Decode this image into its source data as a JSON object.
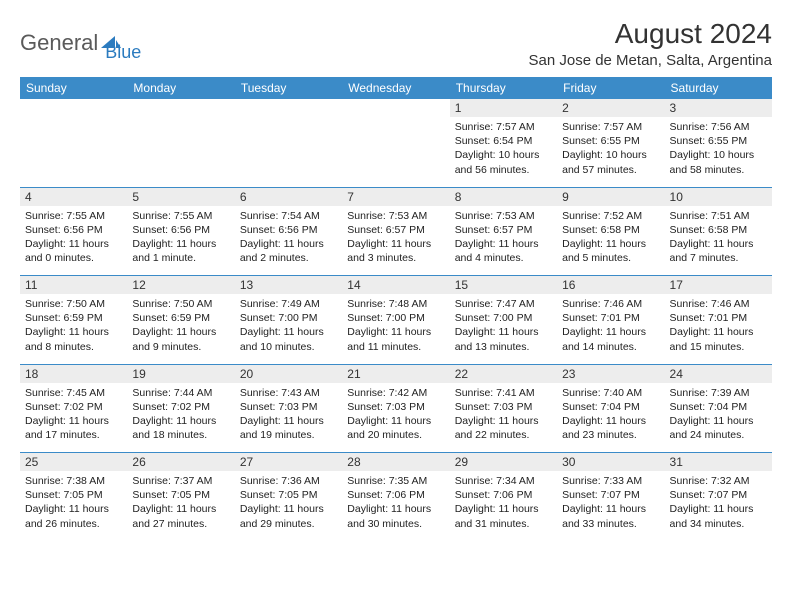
{
  "branding": {
    "logo_text_1": "General",
    "logo_text_2": "Blue",
    "logo_color_gray": "#5a5a5a",
    "logo_color_blue": "#2b7bbf"
  },
  "header": {
    "month_title": "August 2024",
    "location": "San Jose de Metan, Salta, Argentina"
  },
  "colors": {
    "header_bg": "#3b8bc8",
    "header_text": "#ffffff",
    "daynum_bg": "#ededed",
    "border": "#3b8bc8",
    "background": "#ffffff",
    "text": "#000000"
  },
  "day_headers": [
    "Sunday",
    "Monday",
    "Tuesday",
    "Wednesday",
    "Thursday",
    "Friday",
    "Saturday"
  ],
  "weeks": [
    {
      "days": [
        {
          "num": "",
          "empty": true
        },
        {
          "num": "",
          "empty": true
        },
        {
          "num": "",
          "empty": true
        },
        {
          "num": "",
          "empty": true
        },
        {
          "num": "1",
          "sunrise": "Sunrise: 7:57 AM",
          "sunset": "Sunset: 6:54 PM",
          "daylight1": "Daylight: 10 hours",
          "daylight2": "and 56 minutes."
        },
        {
          "num": "2",
          "sunrise": "Sunrise: 7:57 AM",
          "sunset": "Sunset: 6:55 PM",
          "daylight1": "Daylight: 10 hours",
          "daylight2": "and 57 minutes."
        },
        {
          "num": "3",
          "sunrise": "Sunrise: 7:56 AM",
          "sunset": "Sunset: 6:55 PM",
          "daylight1": "Daylight: 10 hours",
          "daylight2": "and 58 minutes."
        }
      ]
    },
    {
      "days": [
        {
          "num": "4",
          "sunrise": "Sunrise: 7:55 AM",
          "sunset": "Sunset: 6:56 PM",
          "daylight1": "Daylight: 11 hours",
          "daylight2": "and 0 minutes."
        },
        {
          "num": "5",
          "sunrise": "Sunrise: 7:55 AM",
          "sunset": "Sunset: 6:56 PM",
          "daylight1": "Daylight: 11 hours",
          "daylight2": "and 1 minute."
        },
        {
          "num": "6",
          "sunrise": "Sunrise: 7:54 AM",
          "sunset": "Sunset: 6:56 PM",
          "daylight1": "Daylight: 11 hours",
          "daylight2": "and 2 minutes."
        },
        {
          "num": "7",
          "sunrise": "Sunrise: 7:53 AM",
          "sunset": "Sunset: 6:57 PM",
          "daylight1": "Daylight: 11 hours",
          "daylight2": "and 3 minutes."
        },
        {
          "num": "8",
          "sunrise": "Sunrise: 7:53 AM",
          "sunset": "Sunset: 6:57 PM",
          "daylight1": "Daylight: 11 hours",
          "daylight2": "and 4 minutes."
        },
        {
          "num": "9",
          "sunrise": "Sunrise: 7:52 AM",
          "sunset": "Sunset: 6:58 PM",
          "daylight1": "Daylight: 11 hours",
          "daylight2": "and 5 minutes."
        },
        {
          "num": "10",
          "sunrise": "Sunrise: 7:51 AM",
          "sunset": "Sunset: 6:58 PM",
          "daylight1": "Daylight: 11 hours",
          "daylight2": "and 7 minutes."
        }
      ]
    },
    {
      "days": [
        {
          "num": "11",
          "sunrise": "Sunrise: 7:50 AM",
          "sunset": "Sunset: 6:59 PM",
          "daylight1": "Daylight: 11 hours",
          "daylight2": "and 8 minutes."
        },
        {
          "num": "12",
          "sunrise": "Sunrise: 7:50 AM",
          "sunset": "Sunset: 6:59 PM",
          "daylight1": "Daylight: 11 hours",
          "daylight2": "and 9 minutes."
        },
        {
          "num": "13",
          "sunrise": "Sunrise: 7:49 AM",
          "sunset": "Sunset: 7:00 PM",
          "daylight1": "Daylight: 11 hours",
          "daylight2": "and 10 minutes."
        },
        {
          "num": "14",
          "sunrise": "Sunrise: 7:48 AM",
          "sunset": "Sunset: 7:00 PM",
          "daylight1": "Daylight: 11 hours",
          "daylight2": "and 11 minutes."
        },
        {
          "num": "15",
          "sunrise": "Sunrise: 7:47 AM",
          "sunset": "Sunset: 7:00 PM",
          "daylight1": "Daylight: 11 hours",
          "daylight2": "and 13 minutes."
        },
        {
          "num": "16",
          "sunrise": "Sunrise: 7:46 AM",
          "sunset": "Sunset: 7:01 PM",
          "daylight1": "Daylight: 11 hours",
          "daylight2": "and 14 minutes."
        },
        {
          "num": "17",
          "sunrise": "Sunrise: 7:46 AM",
          "sunset": "Sunset: 7:01 PM",
          "daylight1": "Daylight: 11 hours",
          "daylight2": "and 15 minutes."
        }
      ]
    },
    {
      "days": [
        {
          "num": "18",
          "sunrise": "Sunrise: 7:45 AM",
          "sunset": "Sunset: 7:02 PM",
          "daylight1": "Daylight: 11 hours",
          "daylight2": "and 17 minutes."
        },
        {
          "num": "19",
          "sunrise": "Sunrise: 7:44 AM",
          "sunset": "Sunset: 7:02 PM",
          "daylight1": "Daylight: 11 hours",
          "daylight2": "and 18 minutes."
        },
        {
          "num": "20",
          "sunrise": "Sunrise: 7:43 AM",
          "sunset": "Sunset: 7:03 PM",
          "daylight1": "Daylight: 11 hours",
          "daylight2": "and 19 minutes."
        },
        {
          "num": "21",
          "sunrise": "Sunrise: 7:42 AM",
          "sunset": "Sunset: 7:03 PM",
          "daylight1": "Daylight: 11 hours",
          "daylight2": "and 20 minutes."
        },
        {
          "num": "22",
          "sunrise": "Sunrise: 7:41 AM",
          "sunset": "Sunset: 7:03 PM",
          "daylight1": "Daylight: 11 hours",
          "daylight2": "and 22 minutes."
        },
        {
          "num": "23",
          "sunrise": "Sunrise: 7:40 AM",
          "sunset": "Sunset: 7:04 PM",
          "daylight1": "Daylight: 11 hours",
          "daylight2": "and 23 minutes."
        },
        {
          "num": "24",
          "sunrise": "Sunrise: 7:39 AM",
          "sunset": "Sunset: 7:04 PM",
          "daylight1": "Daylight: 11 hours",
          "daylight2": "and 24 minutes."
        }
      ]
    },
    {
      "days": [
        {
          "num": "25",
          "sunrise": "Sunrise: 7:38 AM",
          "sunset": "Sunset: 7:05 PM",
          "daylight1": "Daylight: 11 hours",
          "daylight2": "and 26 minutes."
        },
        {
          "num": "26",
          "sunrise": "Sunrise: 7:37 AM",
          "sunset": "Sunset: 7:05 PM",
          "daylight1": "Daylight: 11 hours",
          "daylight2": "and 27 minutes."
        },
        {
          "num": "27",
          "sunrise": "Sunrise: 7:36 AM",
          "sunset": "Sunset: 7:05 PM",
          "daylight1": "Daylight: 11 hours",
          "daylight2": "and 29 minutes."
        },
        {
          "num": "28",
          "sunrise": "Sunrise: 7:35 AM",
          "sunset": "Sunset: 7:06 PM",
          "daylight1": "Daylight: 11 hours",
          "daylight2": "and 30 minutes."
        },
        {
          "num": "29",
          "sunrise": "Sunrise: 7:34 AM",
          "sunset": "Sunset: 7:06 PM",
          "daylight1": "Daylight: 11 hours",
          "daylight2": "and 31 minutes."
        },
        {
          "num": "30",
          "sunrise": "Sunrise: 7:33 AM",
          "sunset": "Sunset: 7:07 PM",
          "daylight1": "Daylight: 11 hours",
          "daylight2": "and 33 minutes."
        },
        {
          "num": "31",
          "sunrise": "Sunrise: 7:32 AM",
          "sunset": "Sunset: 7:07 PM",
          "daylight1": "Daylight: 11 hours",
          "daylight2": "and 34 minutes."
        }
      ]
    }
  ]
}
